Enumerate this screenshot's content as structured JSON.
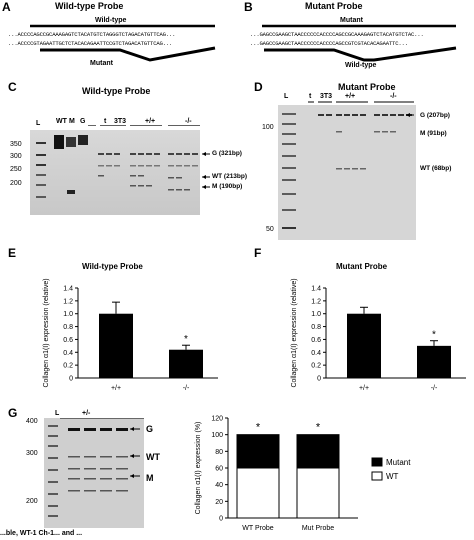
{
  "panelA": {
    "letter": "A",
    "title": "Wild-type Probe",
    "probe_label": "Wild-type",
    "mutant_label": "Mutant",
    "seq1": "...ACCCCAGCCGCAAAGAGTCTACATGTCTAGGGTCTAGACATGTTCAG...",
    "seq2": "...ACCCCGTAGAATTGCTCTACACAGAATTCCGTCTAGACATGTTCAG..."
  },
  "panelB": {
    "letter": "B",
    "title": "Mutant Probe",
    "probe_label": "Mutant",
    "wt_label": "Wild-type",
    "seq1": "...GAGCCGAAGCTAACCCCCCACCCCAGCCGCAAAGAGTCTACATGTCTAC...",
    "seq2": "...GAGCCGAAGCTAACCCCCCACCCCAGCCGTCGTACACAGAATTC..."
  },
  "panelC": {
    "letter": "C",
    "title": "Wild-type Probe",
    "lanes": [
      "L",
      "WT",
      "M",
      "G",
      "t",
      "3T3",
      "+/+",
      "-/-"
    ],
    "ladder": [
      "350",
      "300",
      "250",
      "200"
    ],
    "bands": [
      "G (321bp)",
      "WT (213bp)",
      "M (190bp)"
    ]
  },
  "panelD": {
    "letter": "D",
    "title": "Mutant Probe",
    "lanes": [
      "L",
      "t",
      "3T3",
      "+/+",
      "-/-"
    ],
    "ladder": [
      "100",
      "50"
    ],
    "bands": [
      "G (207bp)",
      "M (91bp)",
      "WT (68bp)"
    ]
  },
  "panelE": {
    "letter": "E",
    "chart_data": {
      "type": "bar",
      "title": "Wild-type Probe",
      "categories": [
        "+/+",
        "-/-"
      ],
      "values": [
        1.0,
        0.44
      ],
      "errors": [
        0.18,
        0.07
      ],
      "ylabel": "Collagen α1(I) expression (relative)",
      "ylim": [
        0,
        1.4
      ],
      "yticks": [
        "0",
        "0.2",
        "0.4",
        "0.6",
        "0.8",
        "1.0",
        "1.2",
        "1.4"
      ],
      "annotation": "*"
    }
  },
  "panelF": {
    "letter": "F",
    "chart_data": {
      "type": "bar",
      "title": "Mutant Probe",
      "categories": [
        "+/+",
        "-/-"
      ],
      "values": [
        1.0,
        0.5
      ],
      "errors": [
        0.1,
        0.08
      ],
      "ylabel": "Collagen α1(I) expression (relative)",
      "ylim": [
        0,
        1.4
      ],
      "yticks": [
        "0",
        "0.2",
        "0.4",
        "0.6",
        "0.8",
        "1.0",
        "1.2",
        "1.4"
      ],
      "annotation": "*"
    }
  },
  "panelG": {
    "letter": "G",
    "lanes": [
      "L",
      "+/-"
    ],
    "ladder": [
      "400",
      "300",
      "200"
    ],
    "bands": [
      "G",
      "WT",
      "M"
    ],
    "chart_data": {
      "type": "bar",
      "categories": [
        "WT Probe",
        "Mut Probe"
      ],
      "series": [
        {
          "name": "WT",
          "values": [
            60,
            60
          ],
          "color": "#ffffff"
        },
        {
          "name": "Mutant",
          "values": [
            40,
            40
          ],
          "color": "#000000"
        }
      ],
      "ylabel": "Collagen α1(I) expression (%)",
      "ylim": [
        0,
        120
      ],
      "yticks": [
        "0",
        "20",
        "40",
        "60",
        "80",
        "100",
        "120"
      ],
      "annotation": "*",
      "legend": "right"
    }
  },
  "caption": "...ble, WT-1 Ch-1... and ..."
}
